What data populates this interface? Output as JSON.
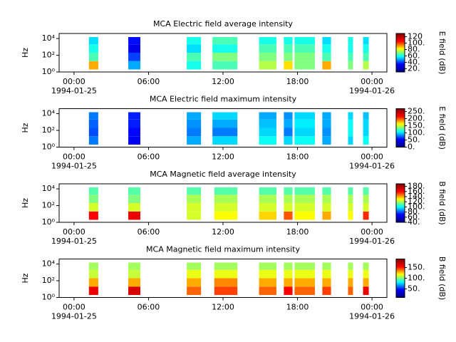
{
  "chart_data": [
    {
      "type": "spectrogram",
      "title": "MCA  Electric field average intensity",
      "ylabel": "Hz",
      "clabel": "E field (dB)",
      "xlim": [
        -1.2,
        25.2
      ],
      "xticks": [
        {
          "value": 0,
          "label": "00:00",
          "date": "1994-01-25"
        },
        {
          "value": 6,
          "label": "06:00"
        },
        {
          "value": 12,
          "label": "12:00"
        },
        {
          "value": 18,
          "label": "18:00"
        },
        {
          "value": 24,
          "label": "00:00",
          "date": "1994-01-26"
        }
      ],
      "ylim": [
        1,
        40000
      ],
      "yticks": [
        {
          "value": 1,
          "label": "10⁰"
        },
        {
          "value": 100,
          "label": "10²"
        },
        {
          "value": 10000,
          "label": "10⁴"
        }
      ],
      "log_y": true,
      "clim": [
        10,
        130
      ],
      "cticks": [
        {
          "value": 20,
          "label": "20."
        },
        {
          "value": 40,
          "label": "40."
        },
        {
          "value": 60,
          "label": "60."
        },
        {
          "value": 80,
          "label": "80."
        },
        {
          "value": 100,
          "label": "100."
        },
        {
          "value": 120,
          "label": "120"
        }
      ],
      "colormap": [
        "#00007f",
        "#0000ff",
        "#00ffff",
        "#ffff00",
        "#ff0000",
        "#7f0000"
      ],
      "freq_edges": [
        2,
        20,
        200,
        2000,
        15000
      ],
      "intervals": [
        [
          1.2,
          1.95
        ],
        [
          4.37,
          5.34
        ],
        [
          9.08,
          10.23
        ],
        [
          11.15,
          13.16
        ],
        [
          14.9,
          16.3
        ],
        [
          16.9,
          17.6
        ],
        [
          17.76,
          19.4
        ],
        [
          20.0,
          20.7
        ],
        [
          22.07,
          22.47
        ],
        [
          23.28,
          23.74
        ]
      ],
      "values": [
        [
          90,
          65,
          60,
          55
        ],
        [
          50,
          40,
          30,
          35
        ],
        [
          60,
          65,
          55,
          60
        ],
        [
          65,
          70,
          60,
          65
        ],
        [
          75,
          70,
          65,
          60
        ],
        [
          85,
          70,
          65,
          60
        ],
        [
          70,
          70,
          65,
          60
        ],
        [
          90,
          65,
          60,
          55
        ],
        [
          70,
          65,
          60,
          60
        ],
        [
          75,
          65,
          60,
          55
        ]
      ]
    },
    {
      "type": "spectrogram",
      "title": "MCA  Electric field maximum intensity",
      "ylabel": "Hz",
      "clabel": "E field (dB)",
      "xlim": [
        -1.2,
        25.2
      ],
      "xticks": [
        {
          "value": 0,
          "label": "00:00",
          "date": "1994-01-25"
        },
        {
          "value": 6,
          "label": "06:00"
        },
        {
          "value": 12,
          "label": "12:00"
        },
        {
          "value": 18,
          "label": "18:00"
        },
        {
          "value": 24,
          "label": "00:00",
          "date": "1994-01-26"
        }
      ],
      "ylim": [
        1,
        40000
      ],
      "yticks": [
        {
          "value": 1,
          "label": "10⁰"
        },
        {
          "value": 100,
          "label": "10²"
        },
        {
          "value": 10000,
          "label": "10⁴"
        }
      ],
      "log_y": true,
      "clim": [
        0,
        270
      ],
      "cticks": [
        {
          "value": 0,
          "label": "0."
        },
        {
          "value": 50,
          "label": "50."
        },
        {
          "value": 100,
          "label": "100."
        },
        {
          "value": 150,
          "label": "150."
        },
        {
          "value": 200,
          "label": "200."
        },
        {
          "value": 250,
          "label": "250."
        }
      ],
      "colormap": [
        "#00007f",
        "#0000ff",
        "#00ffff",
        "#ffff00",
        "#ff0000",
        "#7f0000"
      ],
      "freq_edges": [
        2,
        20,
        200,
        2000,
        15000
      ],
      "intervals": [
        [
          1.2,
          1.95
        ],
        [
          4.37,
          5.34
        ],
        [
          9.08,
          10.23
        ],
        [
          11.15,
          13.16
        ],
        [
          14.9,
          16.3
        ],
        [
          16.9,
          17.6
        ],
        [
          17.76,
          19.4
        ],
        [
          20.0,
          20.7
        ],
        [
          22.07,
          22.47
        ],
        [
          23.28,
          23.74
        ]
      ],
      "values": [
        [
          80,
          70,
          75,
          80
        ],
        [
          50,
          55,
          60,
          60
        ],
        [
          90,
          80,
          85,
          90
        ],
        [
          100,
          80,
          90,
          100
        ],
        [
          110,
          100,
          95,
          90
        ],
        [
          100,
          80,
          90,
          85
        ],
        [
          110,
          100,
          105,
          100
        ],
        [
          90,
          85,
          90,
          90
        ],
        [
          100,
          110,
          110,
          100
        ],
        [
          110,
          100,
          100,
          95
        ]
      ]
    },
    {
      "type": "spectrogram",
      "title": "MCA  Magnetic field average intensity",
      "ylabel": "Hz",
      "clabel": "B field (dB)",
      "xlim": [
        -1.2,
        25.2
      ],
      "xticks": [
        {
          "value": 0,
          "label": "00:00",
          "date": "1994-01-25"
        },
        {
          "value": 6,
          "label": "06:00"
        },
        {
          "value": 12,
          "label": "12:00"
        },
        {
          "value": 18,
          "label": "18:00"
        },
        {
          "value": 24,
          "label": "00:00",
          "date": "1994-01-26"
        }
      ],
      "ylim": [
        1,
        40000
      ],
      "yticks": [
        {
          "value": 1,
          "label": "10⁰"
        },
        {
          "value": 100,
          "label": "10²"
        },
        {
          "value": 10000,
          "label": "10⁴"
        }
      ],
      "log_y": true,
      "clim": [
        40,
        190
      ],
      "cticks": [
        {
          "value": 40,
          "label": "40."
        },
        {
          "value": 60,
          "label": "60."
        },
        {
          "value": 80,
          "label": "80."
        },
        {
          "value": 100,
          "label": "100."
        },
        {
          "value": 120,
          "label": "120."
        },
        {
          "value": 140,
          "label": "140."
        },
        {
          "value": 160,
          "label": "160."
        },
        {
          "value": 180,
          "label": "180."
        }
      ],
      "colormap": [
        "#00007f",
        "#0000ff",
        "#00ffff",
        "#ffff00",
        "#ff0000",
        "#7f0000"
      ],
      "freq_edges": [
        2,
        20,
        200,
        2000,
        15000
      ],
      "intervals": [
        [
          1.2,
          1.95
        ],
        [
          4.37,
          5.34
        ],
        [
          9.08,
          10.23
        ],
        [
          11.3,
          13.16
        ],
        [
          14.9,
          16.3
        ],
        [
          16.9,
          17.6
        ],
        [
          17.76,
          19.4
        ],
        [
          20.0,
          20.7
        ],
        [
          22.07,
          22.47
        ],
        [
          23.28,
          23.74
        ]
      ],
      "values": [
        [
          160,
          125,
          115,
          110
        ],
        [
          165,
          125,
          115,
          110
        ],
        [
          125,
          125,
          120,
          110
        ],
        [
          130,
          125,
          120,
          110
        ],
        [
          135,
          125,
          120,
          110
        ],
        [
          150,
          125,
          120,
          110
        ],
        [
          130,
          125,
          120,
          110
        ],
        [
          140,
          125,
          120,
          110
        ],
        [
          130,
          125,
          120,
          110
        ],
        [
          155,
          125,
          120,
          110
        ]
      ]
    },
    {
      "type": "spectrogram",
      "title": "MCA  Magnetic field maximum intensity",
      "ylabel": "Hz",
      "clabel": "B field (dB)",
      "xlim": [
        -1.2,
        25.2
      ],
      "xticks": [
        {
          "value": 0,
          "label": "00:00",
          "date": "1994-01-25"
        },
        {
          "value": 6,
          "label": "06:00"
        },
        {
          "value": 12,
          "label": "12:00"
        },
        {
          "value": 18,
          "label": "18:00"
        },
        {
          "value": 24,
          "label": "00:00",
          "date": "1994-01-26"
        }
      ],
      "ylim": [
        1,
        40000
      ],
      "yticks": [
        {
          "value": 1,
          "label": "10⁰"
        },
        {
          "value": 100,
          "label": "10²"
        },
        {
          "value": 10000,
          "label": "10⁴"
        }
      ],
      "log_y": true,
      "clim": [
        10,
        190
      ],
      "cticks": [
        {
          "value": 50,
          "label": "50."
        },
        {
          "value": 100,
          "label": "100."
        },
        {
          "value": 150,
          "label": "150."
        }
      ],
      "colormap": [
        "#00007f",
        "#0000ff",
        "#00ffff",
        "#ffff00",
        "#ff0000",
        "#7f0000"
      ],
      "freq_edges": [
        2,
        20,
        200,
        2000,
        15000
      ],
      "intervals": [
        [
          1.2,
          1.95
        ],
        [
          4.37,
          5.34
        ],
        [
          9.08,
          10.23
        ],
        [
          11.3,
          13.16
        ],
        [
          14.9,
          16.3
        ],
        [
          16.9,
          17.6
        ],
        [
          17.76,
          19.4
        ],
        [
          20.0,
          20.7
        ],
        [
          22.07,
          22.47
        ],
        [
          23.28,
          23.74
        ]
      ],
      "values": [
        [
          160,
          130,
          110,
          105
        ],
        [
          165,
          130,
          110,
          105
        ],
        [
          140,
          130,
          115,
          105
        ],
        [
          145,
          135,
          115,
          105
        ],
        [
          140,
          130,
          115,
          105
        ],
        [
          155,
          130,
          115,
          105
        ],
        [
          140,
          130,
          115,
          105
        ],
        [
          145,
          130,
          115,
          105
        ],
        [
          140,
          130,
          115,
          105
        ],
        [
          160,
          130,
          115,
          105
        ]
      ]
    }
  ]
}
